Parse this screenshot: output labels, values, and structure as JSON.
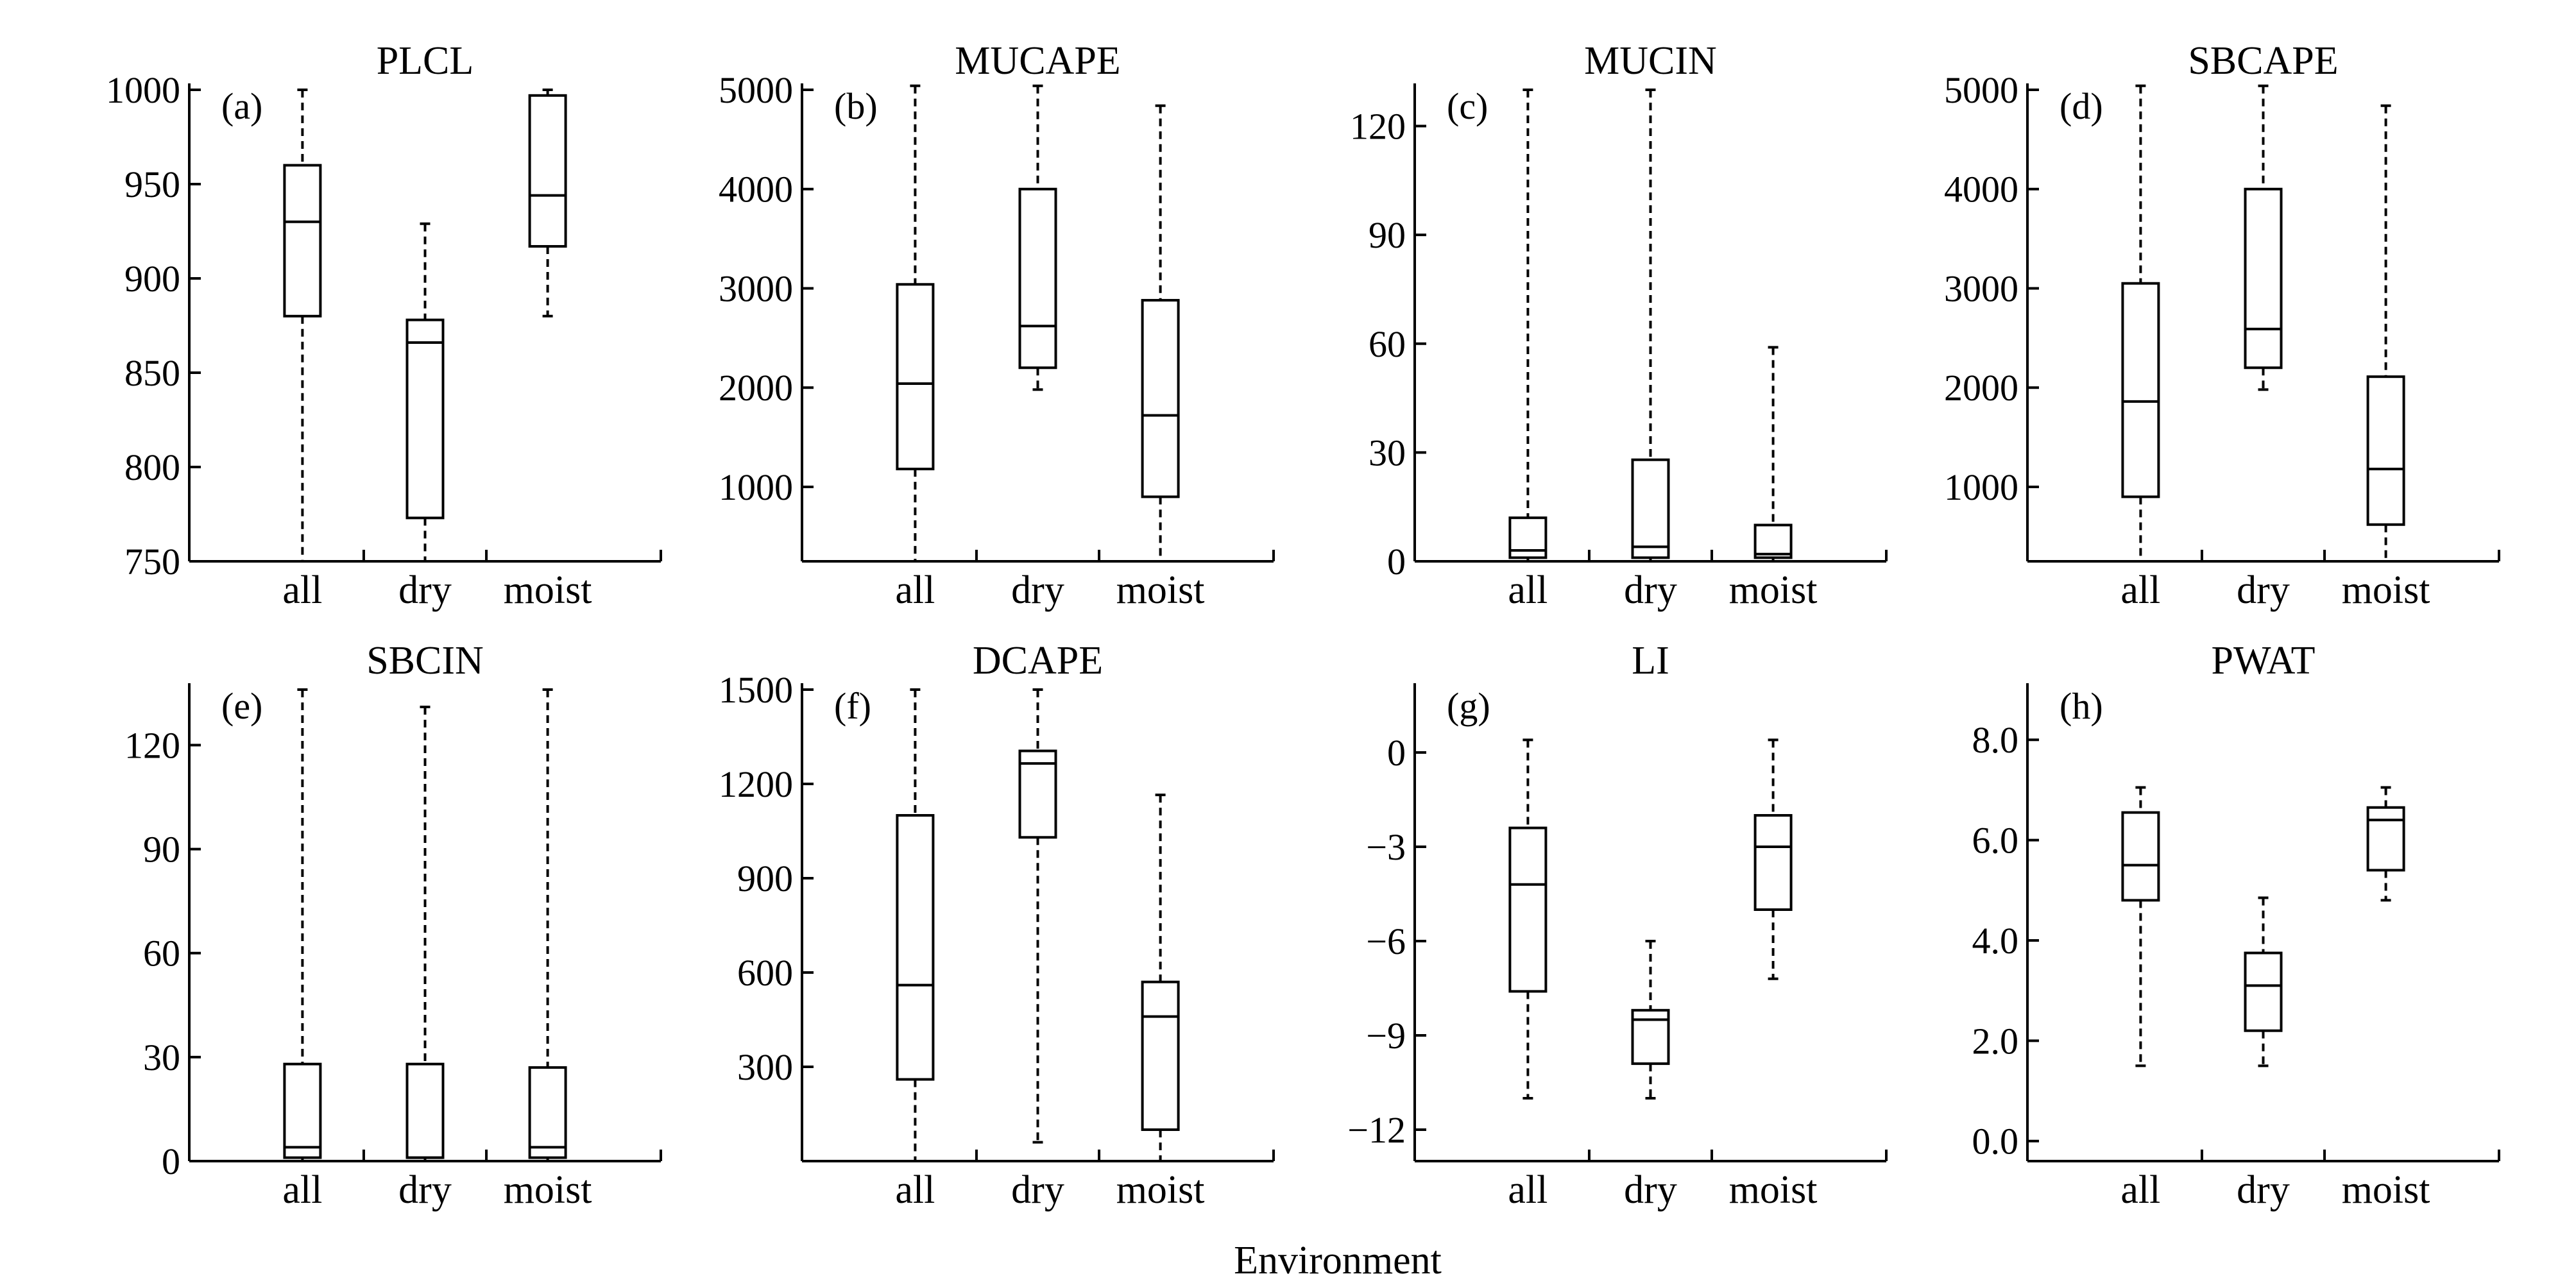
{
  "chart_data": {
    "type": "box",
    "xlabel": "Environment",
    "categories": [
      "all",
      "dry",
      "moist"
    ],
    "panels": [
      {
        "label": "(a)",
        "title": "PLCL",
        "ylim": [
          750,
          1000
        ],
        "yticks": [
          750,
          800,
          850,
          900,
          950,
          1000
        ],
        "ytick_labels": [
          "750",
          "800",
          "850",
          "900",
          "950",
          "1000"
        ],
        "boxes": [
          {
            "category": "all",
            "min": 750,
            "q1": 880,
            "median": 930,
            "q3": 960,
            "max": 1000
          },
          {
            "category": "dry",
            "min": 750,
            "q1": 773,
            "median": 866,
            "q3": 878,
            "max": 929
          },
          {
            "category": "moist",
            "min": 880,
            "q1": 917,
            "median": 944,
            "q3": 997,
            "max": 1000
          }
        ]
      },
      {
        "label": "(b)",
        "title": "MUCAPE",
        "ylim": [
          250,
          5000
        ],
        "yticks": [
          1000,
          2000,
          3000,
          4000,
          5000
        ],
        "ytick_labels": [
          "1000",
          "2000",
          "3000",
          "4000",
          "5000"
        ],
        "boxes": [
          {
            "category": "all",
            "min": 250,
            "q1": 1180,
            "median": 2040,
            "q3": 3040,
            "max": 5040
          },
          {
            "category": "dry",
            "min": 1980,
            "q1": 2200,
            "median": 2620,
            "q3": 4000,
            "max": 5040
          },
          {
            "category": "moist",
            "min": 250,
            "q1": 900,
            "median": 1720,
            "q3": 2880,
            "max": 4840
          }
        ]
      },
      {
        "label": "(c)",
        "title": "MUCIN",
        "ylim": [
          0,
          130
        ],
        "yticks": [
          0,
          30,
          60,
          90,
          120
        ],
        "ytick_labels": [
          "0",
          "30",
          "60",
          "90",
          "120"
        ],
        "boxes": [
          {
            "category": "all",
            "min": 0,
            "q1": 1,
            "median": 3,
            "q3": 12,
            "max": 130
          },
          {
            "category": "dry",
            "min": 0,
            "q1": 1,
            "median": 4,
            "q3": 28,
            "max": 130
          },
          {
            "category": "moist",
            "min": 0,
            "q1": 1,
            "median": 2,
            "q3": 10,
            "max": 59
          }
        ]
      },
      {
        "label": "(d)",
        "title": "SBCAPE",
        "ylim": [
          250,
          5000
        ],
        "yticks": [
          1000,
          2000,
          3000,
          4000,
          5000
        ],
        "ytick_labels": [
          "1000",
          "2000",
          "3000",
          "4000",
          "5000"
        ],
        "boxes": [
          {
            "category": "all",
            "min": 250,
            "q1": 900,
            "median": 1860,
            "q3": 3050,
            "max": 5040
          },
          {
            "category": "dry",
            "min": 1980,
            "q1": 2200,
            "median": 2590,
            "q3": 4000,
            "max": 5040
          },
          {
            "category": "moist",
            "min": 250,
            "q1": 620,
            "median": 1180,
            "q3": 2110,
            "max": 4840
          }
        ]
      },
      {
        "label": "(e)",
        "title": "SBCIN",
        "ylim": [
          0,
          136
        ],
        "yticks": [
          0,
          30,
          60,
          90,
          120
        ],
        "ytick_labels": [
          "0",
          "30",
          "60",
          "90",
          "120"
        ],
        "boxes": [
          {
            "category": "all",
            "min": 0,
            "q1": 1,
            "median": 4,
            "q3": 28,
            "max": 136
          },
          {
            "category": "dry",
            "min": 0,
            "q1": 1,
            "median": 1,
            "q3": 28,
            "max": 131
          },
          {
            "category": "moist",
            "min": 0,
            "q1": 1,
            "median": 4,
            "q3": 27,
            "max": 136
          }
        ]
      },
      {
        "label": "(f)",
        "title": "DCAPE",
        "ylim": [
          0,
          1500
        ],
        "yticks": [
          300,
          600,
          900,
          1200,
          1500
        ],
        "ytick_labels": [
          "300",
          "600",
          "900",
          "1200",
          "1500"
        ],
        "boxes": [
          {
            "category": "all",
            "min": 0,
            "q1": 260,
            "median": 560,
            "q3": 1100,
            "max": 1500
          },
          {
            "category": "dry",
            "min": 60,
            "q1": 1030,
            "median": 1265,
            "q3": 1305,
            "max": 1500
          },
          {
            "category": "moist",
            "min": 0,
            "q1": 100,
            "median": 460,
            "q3": 570,
            "max": 1165
          }
        ]
      },
      {
        "label": "(g)",
        "title": "LI",
        "ylim": [
          -13,
          2
        ],
        "yticks": [
          -12,
          -9,
          -6,
          -3,
          0
        ],
        "ytick_labels": [
          "−12",
          "−9",
          "−6",
          "−3",
          "0"
        ],
        "boxes": [
          {
            "category": "all",
            "min": -11,
            "q1": -7.6,
            "median": -4.2,
            "q3": -2.4,
            "max": 0.4
          },
          {
            "category": "dry",
            "min": -11,
            "q1": -9.9,
            "median": -8.5,
            "q3": -8.2,
            "max": -6
          },
          {
            "category": "moist",
            "min": -7.2,
            "q1": -5,
            "median": -3,
            "q3": -2,
            "max": 0.4
          }
        ]
      },
      {
        "label": "(h)",
        "title": "PWAT",
        "ylim": [
          -0.4,
          9
        ],
        "yticks": [
          0,
          2,
          4,
          6,
          8
        ],
        "ytick_labels": [
          "0.0",
          "2.0",
          "4.0",
          "6.0",
          "8.0"
        ],
        "boxes": [
          {
            "category": "all",
            "min": 1.5,
            "q1": 4.8,
            "median": 5.5,
            "q3": 6.55,
            "max": 7.05
          },
          {
            "category": "dry",
            "min": 1.5,
            "q1": 2.2,
            "median": 3.1,
            "q3": 3.75,
            "max": 4.85
          },
          {
            "category": "moist",
            "min": 4.8,
            "q1": 5.4,
            "median": 6.4,
            "q3": 6.65,
            "max": 7.05
          }
        ]
      }
    ]
  }
}
